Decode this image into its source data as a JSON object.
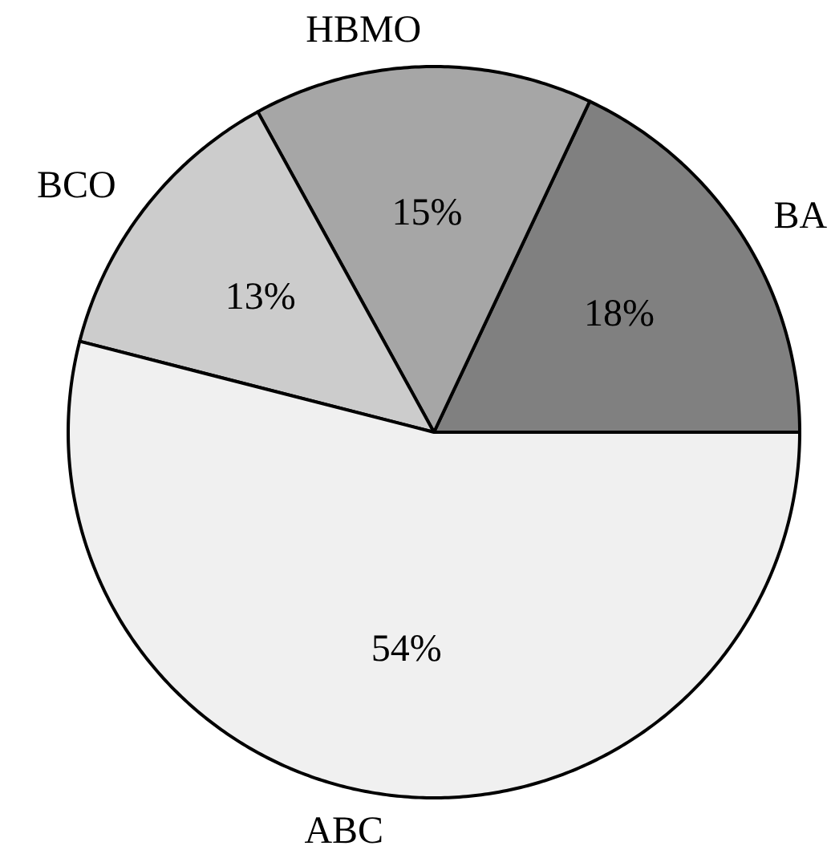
{
  "chart_data": {
    "type": "pie",
    "categories": [
      "BA",
      "HBMO",
      "BCO",
      "ABC"
    ],
    "values": [
      18,
      15,
      13,
      54
    ],
    "colors": [
      "#808080",
      "#a6a6a6",
      "#cccccc",
      "#f0f0f0"
    ],
    "value_labels": [
      "18%",
      "15%",
      "13%",
      "54%"
    ]
  }
}
